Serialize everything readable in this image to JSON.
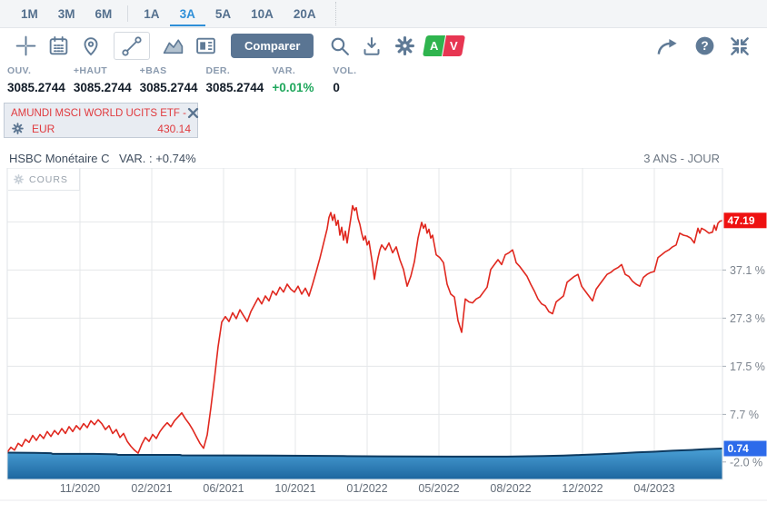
{
  "colors": {
    "accent_blue": "#2e8fd8",
    "slate_icon": "#5f7a96",
    "compare_bg": "#5a7593",
    "buy_green": "#2fb44e",
    "sell_red": "#e73652",
    "value_green": "#1fa75c",
    "chip_red": "#e03a3e",
    "grid": "#e5e7ea",
    "plot_border": "#dfe3e7"
  },
  "range_bar": {
    "items": [
      {
        "label": "1M",
        "active": false
      },
      {
        "label": "3M",
        "active": false
      },
      {
        "label": "6M",
        "active": false
      },
      {
        "label": "1A",
        "active": false
      },
      {
        "label": "3A",
        "active": true
      },
      {
        "label": "5A",
        "active": false
      },
      {
        "label": "10A",
        "active": false
      },
      {
        "label": "20A",
        "active": false
      }
    ],
    "divider_after_index": 2
  },
  "toolbar": {
    "compare_label": "Comparer",
    "buy_label": "A",
    "sell_label": "V",
    "icons": [
      "crosshair",
      "calendar",
      "map-pin",
      "trendline-tool",
      "area-chart",
      "news-panel",
      "search",
      "download",
      "settings-gear",
      "buy-badge",
      "sell-badge",
      "share-arrow",
      "help",
      "collapse"
    ]
  },
  "stats": [
    {
      "label": "OUV.",
      "value": "3085.2744",
      "positive": false
    },
    {
      "label": "+HAUT",
      "value": "3085.2744",
      "positive": false
    },
    {
      "label": "+BAS",
      "value": "3085.2744",
      "positive": false
    },
    {
      "label": "DER.",
      "value": "3085.2744",
      "positive": false
    },
    {
      "label": "VAR.",
      "value": "+0.01%",
      "positive": true
    },
    {
      "label": "VOL.",
      "value": "0",
      "positive": false
    }
  ],
  "instrument_chip": {
    "name": "AMUNDI MSCI WORLD UCITS ETF -",
    "currency": "EUR",
    "price": "430.14"
  },
  "chart_header": {
    "instrument": "HSBC Monétaire C",
    "variation": "VAR. : +0.74%",
    "period": "3 ANS - JOUR"
  },
  "chart_data": {
    "type": "line",
    "overlay_label": "COURS",
    "x_axis": {
      "ticks": [
        "11/2020",
        "02/2021",
        "06/2021",
        "10/2021",
        "01/2022",
        "05/2022",
        "08/2022",
        "12/2022",
        "04/2023"
      ]
    },
    "y_axis": {
      "unit": "%",
      "min": -2.0,
      "max": 50.5,
      "grid_values": [
        46.9,
        37.1,
        27.3,
        17.5,
        7.7,
        -2.0
      ],
      "tick_labels": [
        {
          "value": 37.1,
          "label": "37.1 %"
        },
        {
          "value": 27.3,
          "label": "27.3 %"
        },
        {
          "value": 17.5,
          "label": "17.5 %"
        },
        {
          "value": 7.7,
          "label": "7.7 %"
        },
        {
          "value": -2.0,
          "label": "-2.0 %"
        }
      ]
    },
    "series": [
      {
        "name": "AMUNDI MSCI WORLD UCITS ETF",
        "style": "line",
        "color": "#e0281f",
        "last_value": 47.19,
        "badge_label": "47.19",
        "badge_color": "#ee1111",
        "points": [
          [
            0,
            0
          ],
          [
            4,
            1.0
          ],
          [
            8,
            0.4
          ],
          [
            12,
            1.8
          ],
          [
            16,
            1.2
          ],
          [
            20,
            2.6
          ],
          [
            24,
            2.0
          ],
          [
            28,
            3.4
          ],
          [
            32,
            2.4
          ],
          [
            36,
            3.6
          ],
          [
            40,
            2.8
          ],
          [
            44,
            4.2
          ],
          [
            48,
            3.2
          ],
          [
            52,
            4.4
          ],
          [
            56,
            3.6
          ],
          [
            60,
            4.8
          ],
          [
            64,
            3.8
          ],
          [
            68,
            5.2
          ],
          [
            72,
            4.2
          ],
          [
            76,
            5.4
          ],
          [
            80,
            4.6
          ],
          [
            84,
            5.8
          ],
          [
            88,
            5.0
          ],
          [
            92,
            6.4
          ],
          [
            96,
            5.6
          ],
          [
            100,
            6.6
          ],
          [
            104,
            5.8
          ],
          [
            108,
            4.6
          ],
          [
            112,
            5.4
          ],
          [
            116,
            3.8
          ],
          [
            120,
            4.6
          ],
          [
            124,
            3.0
          ],
          [
            128,
            3.8
          ],
          [
            132,
            2.2
          ],
          [
            136,
            1.2
          ],
          [
            140,
            0.4
          ],
          [
            144,
            -0.2
          ],
          [
            148,
            1.6
          ],
          [
            152,
            3.0
          ],
          [
            156,
            2.2
          ],
          [
            160,
            3.6
          ],
          [
            164,
            2.8
          ],
          [
            168,
            4.2
          ],
          [
            172,
            5.2
          ],
          [
            176,
            6.0
          ],
          [
            180,
            5.2
          ],
          [
            184,
            6.4
          ],
          [
            188,
            7.2
          ],
          [
            192,
            8.0
          ],
          [
            196,
            6.8
          ],
          [
            200,
            5.8
          ],
          [
            204,
            4.6
          ],
          [
            208,
            3.2
          ],
          [
            212,
            1.8
          ],
          [
            216,
            0.8
          ],
          [
            220,
            3.5
          ],
          [
            224,
            9.0
          ],
          [
            228,
            15.0
          ],
          [
            232,
            21.5
          ],
          [
            236,
            26.5
          ],
          [
            240,
            27.6
          ],
          [
            244,
            26.6
          ],
          [
            248,
            28.4
          ],
          [
            252,
            27.2
          ],
          [
            256,
            29.0
          ],
          [
            260,
            27.8
          ],
          [
            264,
            26.6
          ],
          [
            268,
            28.6
          ],
          [
            272,
            30.0
          ],
          [
            276,
            31.4
          ],
          [
            280,
            30.2
          ],
          [
            284,
            31.8
          ],
          [
            288,
            30.8
          ],
          [
            292,
            32.8
          ],
          [
            296,
            32.0
          ],
          [
            300,
            33.6
          ],
          [
            304,
            32.6
          ],
          [
            308,
            34.2
          ],
          [
            312,
            33.2
          ],
          [
            316,
            32.6
          ],
          [
            320,
            33.8
          ],
          [
            324,
            32.2
          ],
          [
            328,
            33.4
          ],
          [
            332,
            31.8
          ],
          [
            336,
            34.2
          ],
          [
            340,
            36.8
          ],
          [
            344,
            39.5
          ],
          [
            348,
            42.5
          ],
          [
            352,
            45.5
          ],
          [
            354,
            47.8
          ],
          [
            356,
            48.8
          ],
          [
            358,
            47.2
          ],
          [
            360,
            48.4
          ],
          [
            362,
            46.2
          ],
          [
            364,
            47.2
          ],
          [
            366,
            44.2
          ],
          [
            368,
            45.8
          ],
          [
            370,
            43.2
          ],
          [
            372,
            45.0
          ],
          [
            374,
            42.6
          ],
          [
            376,
            45.2
          ],
          [
            378,
            47.6
          ],
          [
            380,
            50.2
          ],
          [
            382,
            49.2
          ],
          [
            384,
            49.8
          ],
          [
            386,
            47.6
          ],
          [
            388,
            46.4
          ],
          [
            390,
            44.6
          ],
          [
            392,
            43.2
          ],
          [
            394,
            44.0
          ],
          [
            396,
            42.2
          ],
          [
            398,
            43.0
          ],
          [
            400,
            40.6
          ],
          [
            402,
            38.2
          ],
          [
            404,
            35.2
          ],
          [
            406,
            37.6
          ],
          [
            408,
            39.6
          ],
          [
            410,
            41.2
          ],
          [
            412,
            42.2
          ],
          [
            416,
            41.2
          ],
          [
            420,
            42.6
          ],
          [
            424,
            40.6
          ],
          [
            428,
            41.8
          ],
          [
            432,
            39.2
          ],
          [
            436,
            37.2
          ],
          [
            440,
            33.8
          ],
          [
            444,
            35.8
          ],
          [
            448,
            38.8
          ],
          [
            452,
            43.6
          ],
          [
            456,
            46.8
          ],
          [
            458,
            45.6
          ],
          [
            460,
            46.4
          ],
          [
            462,
            44.6
          ],
          [
            464,
            45.4
          ],
          [
            466,
            43.6
          ],
          [
            468,
            44.2
          ],
          [
            472,
            40.2
          ],
          [
            476,
            39.6
          ],
          [
            480,
            38.6
          ],
          [
            484,
            34.2
          ],
          [
            488,
            32.2
          ],
          [
            492,
            31.6
          ],
          [
            496,
            26.8
          ],
          [
            500,
            24.4
          ],
          [
            504,
            31.2
          ],
          [
            508,
            30.6
          ],
          [
            512,
            30.4
          ],
          [
            516,
            31.2
          ],
          [
            520,
            31.6
          ],
          [
            524,
            32.6
          ],
          [
            528,
            33.6
          ],
          [
            532,
            37.2
          ],
          [
            536,
            38.2
          ],
          [
            540,
            39.2
          ],
          [
            544,
            38.2
          ],
          [
            548,
            40.2
          ],
          [
            552,
            40.6
          ],
          [
            556,
            41.2
          ],
          [
            558,
            40.0
          ],
          [
            560,
            38.6
          ],
          [
            564,
            37.8
          ],
          [
            568,
            36.8
          ],
          [
            572,
            35.8
          ],
          [
            576,
            34.2
          ],
          [
            580,
            32.8
          ],
          [
            584,
            31.2
          ],
          [
            588,
            30.2
          ],
          [
            592,
            29.8
          ],
          [
            596,
            28.6
          ],
          [
            600,
            28.2
          ],
          [
            604,
            30.6
          ],
          [
            608,
            31.2
          ],
          [
            612,
            31.8
          ],
          [
            616,
            34.6
          ],
          [
            620,
            35.2
          ],
          [
            624,
            35.8
          ],
          [
            628,
            36.2
          ],
          [
            632,
            33.8
          ],
          [
            636,
            32.8
          ],
          [
            640,
            31.8
          ],
          [
            644,
            30.8
          ],
          [
            648,
            33.2
          ],
          [
            652,
            34.2
          ],
          [
            656,
            35.2
          ],
          [
            660,
            36.2
          ],
          [
            664,
            36.6
          ],
          [
            668,
            37.2
          ],
          [
            672,
            37.6
          ],
          [
            676,
            38.2
          ],
          [
            680,
            36.2
          ],
          [
            684,
            35.8
          ],
          [
            688,
            34.8
          ],
          [
            692,
            34.2
          ],
          [
            696,
            33.8
          ],
          [
            700,
            35.6
          ],
          [
            704,
            36.2
          ],
          [
            708,
            36.6
          ],
          [
            712,
            36.8
          ],
          [
            716,
            39.6
          ],
          [
            720,
            40.2
          ],
          [
            724,
            40.8
          ],
          [
            728,
            41.2
          ],
          [
            732,
            41.8
          ],
          [
            736,
            42.2
          ],
          [
            740,
            44.6
          ],
          [
            744,
            44.2
          ],
          [
            748,
            44.0
          ],
          [
            752,
            43.6
          ],
          [
            756,
            42.6
          ],
          [
            760,
            45.6
          ],
          [
            762,
            44.6
          ],
          [
            764,
            45.6
          ],
          [
            768,
            45.2
          ],
          [
            772,
            44.6
          ],
          [
            776,
            44.8
          ],
          [
            778,
            46.2
          ],
          [
            780,
            45.2
          ],
          [
            782,
            46.6
          ],
          [
            784,
            47.0
          ],
          [
            787,
            47.19
          ]
        ]
      },
      {
        "name": "HSBC Monétaire C",
        "style": "area",
        "stroke": "#0d3a60",
        "fill_top": "#4aa0d6",
        "fill_bottom": "#1d669f",
        "last_value": 0.74,
        "badge_label": "0.74",
        "badge_color": "#2d6bea",
        "points": [
          [
            0,
            -0.1
          ],
          [
            30,
            -0.15
          ],
          [
            48,
            -0.2
          ],
          [
            50,
            -0.35
          ],
          [
            95,
            -0.35
          ],
          [
            120,
            -0.45
          ],
          [
            122,
            -0.55
          ],
          [
            190,
            -0.55
          ],
          [
            192,
            -0.65
          ],
          [
            290,
            -0.7
          ],
          [
            370,
            -0.8
          ],
          [
            410,
            -0.85
          ],
          [
            490,
            -0.9
          ],
          [
            550,
            -0.9
          ],
          [
            590,
            -0.8
          ],
          [
            612,
            -0.7
          ],
          [
            632,
            -0.55
          ],
          [
            652,
            -0.4
          ],
          [
            672,
            -0.25
          ],
          [
            692,
            -0.05
          ],
          [
            712,
            0.1
          ],
          [
            732,
            0.3
          ],
          [
            752,
            0.45
          ],
          [
            767,
            0.6
          ],
          [
            780,
            0.7
          ],
          [
            787,
            0.74
          ]
        ]
      }
    ]
  }
}
